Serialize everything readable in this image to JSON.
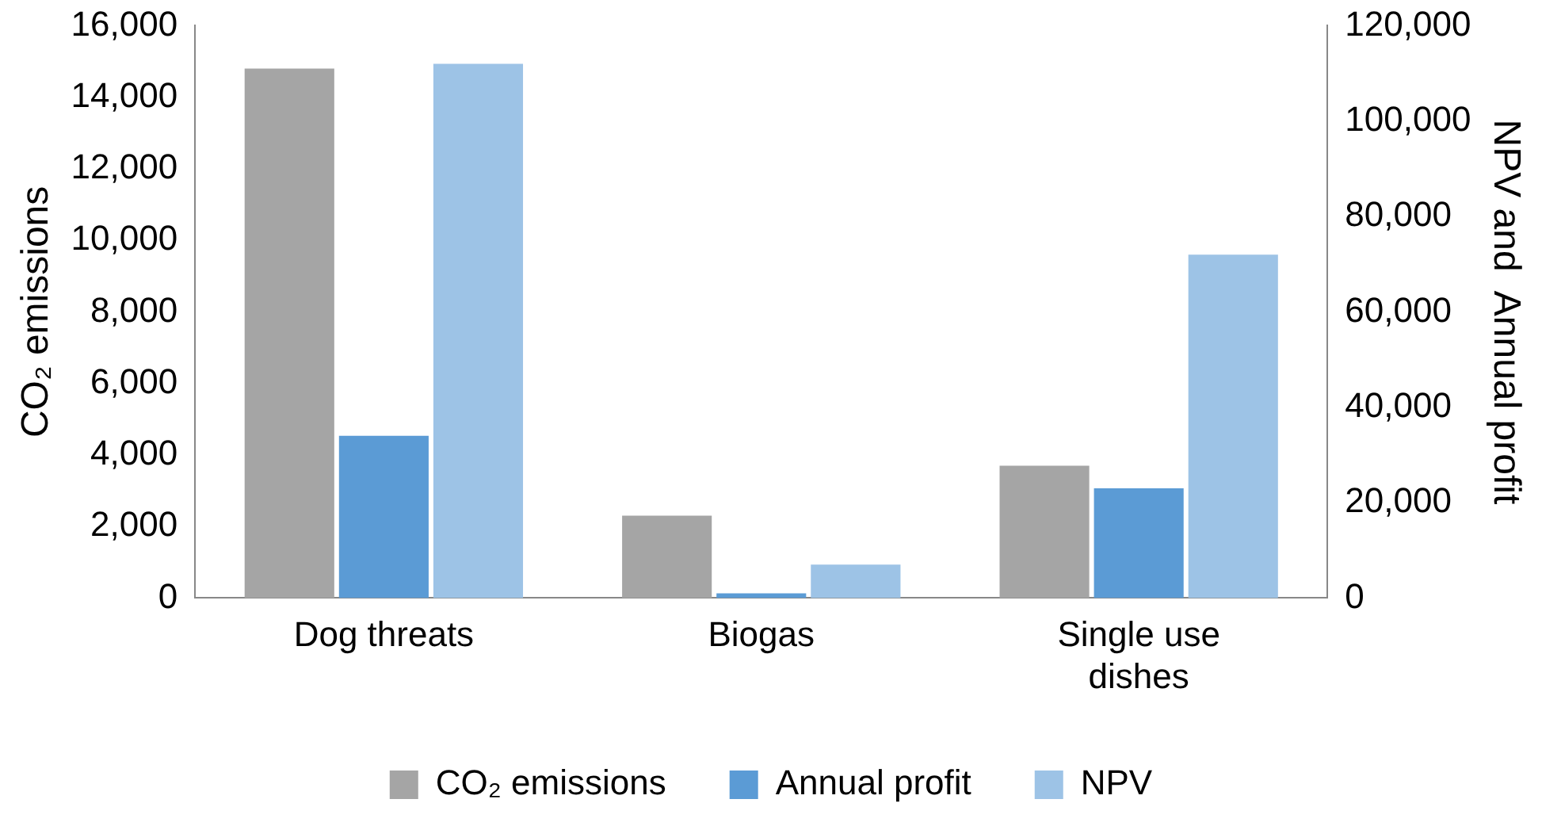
{
  "chart_data": {
    "type": "bar",
    "categories": [
      "Dog threats",
      "Biogas",
      "Single use dishes"
    ],
    "ylabel": "CO₂ emissions",
    "y2label": "NPV and  Annual profit",
    "ylim": [
      0,
      16000
    ],
    "yticks": [
      0,
      {
        "value": 2000,
        "label": "2,000"
      },
      {
        "value": 4000,
        "label": "4,000"
      },
      {
        "value": 6000,
        "label": "6,000"
      },
      {
        "value": 8000,
        "label": "8,000"
      },
      {
        "value": 10000,
        "label": "10,000"
      },
      {
        "value": 12000,
        "label": "12,000"
      },
      {
        "value": 14000,
        "label": "14,000"
      },
      {
        "value": 16000,
        "label": "16,000"
      }
    ],
    "y2lim": [
      0,
      120000
    ],
    "y2ticks": [
      0,
      {
        "value": 20000,
        "label": "20,000"
      },
      {
        "value": 40000,
        "label": "40,000"
      },
      {
        "value": 60000,
        "label": "60,000"
      },
      {
        "value": 80000,
        "label": "80,000"
      },
      {
        "value": 100000,
        "label": "100,000"
      },
      {
        "value": 120000,
        "label": "120,000"
      }
    ],
    "grid": false,
    "legend": "bottom",
    "series": [
      {
        "name": "CO₂ emissions",
        "color": "#a5a5a5",
        "values": [
          14800,
          2300,
          3700
        ]
      },
      {
        "name": "Annual profit",
        "color": "#5b9bd5",
        "values": [
          34000,
          1000,
          23000
        ],
        "axis": "y2"
      },
      {
        "name": "NPV",
        "color": "#9dc3e6",
        "values": [
          112000,
          7000,
          72000
        ],
        "axis": "y2"
      }
    ]
  }
}
